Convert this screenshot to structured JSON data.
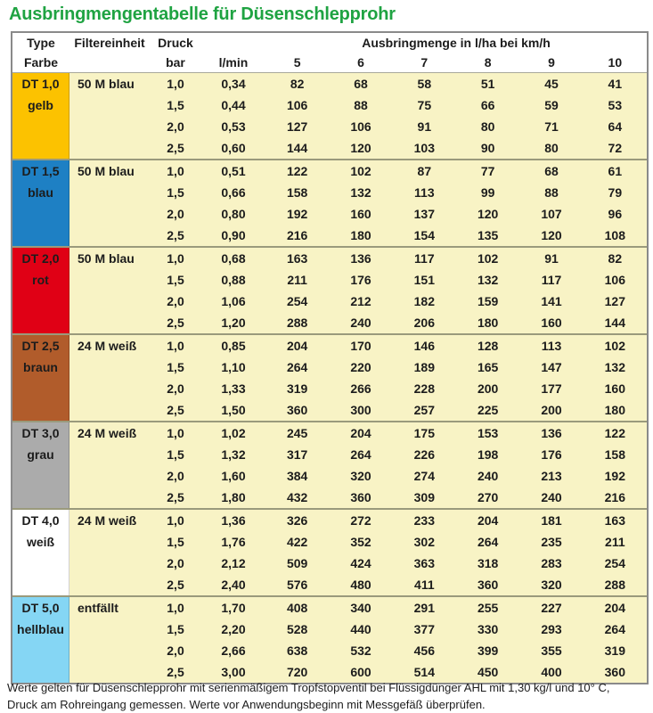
{
  "title": "Ausbringmengentabelle für Düsenschlepprohr",
  "colors": {
    "title_green": "#1fa342",
    "table_body_bg": "#f8f3c5",
    "table_border": "#8a8a8a",
    "group_separator": "#9a9a7c"
  },
  "header": {
    "type_label": "Type",
    "farbe_label": "Farbe",
    "filter_label": "Filtereinheit",
    "druck_label": "Druck",
    "bar_label": "bar",
    "lmin_label": "l/min",
    "rate_span_label": "Ausbringmenge in l/ha bei km/h",
    "speeds": [
      "5",
      "6",
      "7",
      "8",
      "9",
      "10"
    ]
  },
  "groups": [
    {
      "type": "DT 1,0",
      "farbe": "gelb",
      "color": "#fcc200",
      "filter": "50 M blau",
      "rows": [
        {
          "bar": "1,0",
          "lmin": "0,34",
          "values": [
            82,
            68,
            58,
            51,
            45,
            41
          ]
        },
        {
          "bar": "1,5",
          "lmin": "0,44",
          "values": [
            106,
            88,
            75,
            66,
            59,
            53
          ]
        },
        {
          "bar": "2,0",
          "lmin": "0,53",
          "values": [
            127,
            106,
            91,
            80,
            71,
            64
          ]
        },
        {
          "bar": "2,5",
          "lmin": "0,60",
          "values": [
            144,
            120,
            103,
            90,
            80,
            72
          ]
        }
      ]
    },
    {
      "type": "DT 1,5",
      "farbe": "blau",
      "color": "#1e80c4",
      "filter": "50 M blau",
      "rows": [
        {
          "bar": "1,0",
          "lmin": "0,51",
          "values": [
            122,
            102,
            87,
            77,
            68,
            61
          ]
        },
        {
          "bar": "1,5",
          "lmin": "0,66",
          "values": [
            158,
            132,
            113,
            99,
            88,
            79
          ]
        },
        {
          "bar": "2,0",
          "lmin": "0,80",
          "values": [
            192,
            160,
            137,
            120,
            107,
            96
          ]
        },
        {
          "bar": "2,5",
          "lmin": "0,90",
          "values": [
            216,
            180,
            154,
            135,
            120,
            108
          ]
        }
      ]
    },
    {
      "type": "DT 2,0",
      "farbe": "rot",
      "color": "#e00015",
      "filter": "50 M blau",
      "rows": [
        {
          "bar": "1,0",
          "lmin": "0,68",
          "values": [
            163,
            136,
            117,
            102,
            91,
            82
          ]
        },
        {
          "bar": "1,5",
          "lmin": "0,88",
          "values": [
            211,
            176,
            151,
            132,
            117,
            106
          ]
        },
        {
          "bar": "2,0",
          "lmin": "1,06",
          "values": [
            254,
            212,
            182,
            159,
            141,
            127
          ]
        },
        {
          "bar": "2,5",
          "lmin": "1,20",
          "values": [
            288,
            240,
            206,
            180,
            160,
            144
          ]
        }
      ]
    },
    {
      "type": "DT 2,5",
      "farbe": "braun",
      "color": "#b15c2b",
      "filter": "24 M weiß",
      "rows": [
        {
          "bar": "1,0",
          "lmin": "0,85",
          "values": [
            204,
            170,
            146,
            128,
            113,
            102
          ]
        },
        {
          "bar": "1,5",
          "lmin": "1,10",
          "values": [
            264,
            220,
            189,
            165,
            147,
            132
          ]
        },
        {
          "bar": "2,0",
          "lmin": "1,33",
          "values": [
            319,
            266,
            228,
            200,
            177,
            160
          ]
        },
        {
          "bar": "2,5",
          "lmin": "1,50",
          "values": [
            360,
            300,
            257,
            225,
            200,
            180
          ]
        }
      ]
    },
    {
      "type": "DT 3,0",
      "farbe": "grau",
      "color": "#ababab",
      "filter": "24 M weiß",
      "rows": [
        {
          "bar": "1,0",
          "lmin": "1,02",
          "values": [
            245,
            204,
            175,
            153,
            136,
            122
          ]
        },
        {
          "bar": "1,5",
          "lmin": "1,32",
          "values": [
            317,
            264,
            226,
            198,
            176,
            158
          ]
        },
        {
          "bar": "2,0",
          "lmin": "1,60",
          "values": [
            384,
            320,
            274,
            240,
            213,
            192
          ]
        },
        {
          "bar": "2,5",
          "lmin": "1,80",
          "values": [
            432,
            360,
            309,
            270,
            240,
            216
          ]
        }
      ]
    },
    {
      "type": "DT 4,0",
      "farbe": "weiß",
      "color": "#ffffff",
      "filter": "24 M weiß",
      "rows": [
        {
          "bar": "1,0",
          "lmin": "1,36",
          "values": [
            326,
            272,
            233,
            204,
            181,
            163
          ]
        },
        {
          "bar": "1,5",
          "lmin": "1,76",
          "values": [
            422,
            352,
            302,
            264,
            235,
            211
          ]
        },
        {
          "bar": "2,0",
          "lmin": "2,12",
          "values": [
            509,
            424,
            363,
            318,
            283,
            254
          ]
        },
        {
          "bar": "2,5",
          "lmin": "2,40",
          "values": [
            576,
            480,
            411,
            360,
            320,
            288
          ]
        }
      ]
    },
    {
      "type": "DT 5,0",
      "farbe": "hellblau",
      "color": "#85d6f4",
      "filter": "entfällt",
      "rows": [
        {
          "bar": "1,0",
          "lmin": "1,70",
          "values": [
            408,
            340,
            291,
            255,
            227,
            204
          ]
        },
        {
          "bar": "1,5",
          "lmin": "2,20",
          "values": [
            528,
            440,
            377,
            330,
            293,
            264
          ]
        },
        {
          "bar": "2,0",
          "lmin": "2,66",
          "values": [
            638,
            532,
            456,
            399,
            355,
            319
          ]
        },
        {
          "bar": "2,5",
          "lmin": "3,00",
          "values": [
            720,
            600,
            514,
            450,
            400,
            360
          ]
        }
      ]
    }
  ],
  "footer": {
    "line1": "Werte gelten für Düsenschlepprohr mit serienmäßigem Tropfstopventil bei Flüssigdünger AHL mit 1,30 kg/l und 10° C,",
    "line2": "Druck am Rohreingang gemessen. Werte vor Anwendungsbeginn mit Messgefäß überprüfen."
  }
}
